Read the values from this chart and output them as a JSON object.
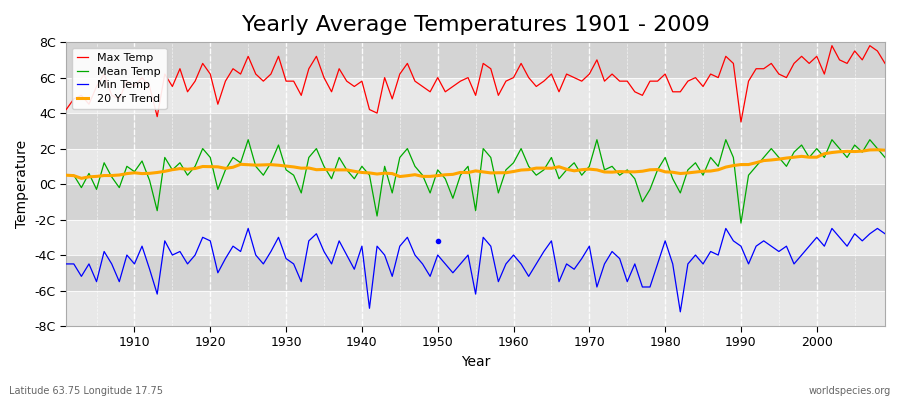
{
  "title": "Yearly Average Temperatures 1901 - 2009",
  "xlabel": "Year",
  "ylabel": "Temperature",
  "footnote_left": "Latitude 63.75 Longitude 17.75",
  "footnote_right": "worldspecies.org",
  "ylim": [
    -8,
    8
  ],
  "yticks": [
    -8,
    -6,
    -4,
    -2,
    0,
    2,
    4,
    6,
    8
  ],
  "ytick_labels": [
    "-8C",
    "-6C",
    "-4C",
    "-2C",
    "0C",
    "2C",
    "4C",
    "6C",
    "8C"
  ],
  "year_start": 1901,
  "year_end": 2009,
  "fig_bg_color": "#ffffff",
  "plot_bg_color": "#d8d8d8",
  "band_color_light": "#e8e8e8",
  "band_color_dark": "#d0d0d0",
  "max_temp_color": "#ff0000",
  "mean_temp_color": "#00aa00",
  "min_temp_color": "#0000ff",
  "trend_color": "#ffa500",
  "legend_labels": [
    "Max Temp",
    "Mean Temp",
    "Min Temp",
    "20 Yr Trend"
  ],
  "title_fontsize": 16,
  "axis_label_fontsize": 10,
  "tick_fontsize": 9,
  "max_temp": [
    4.2,
    4.8,
    5.0,
    4.5,
    5.5,
    6.2,
    5.0,
    4.8,
    5.8,
    5.5,
    6.0,
    5.5,
    3.8,
    6.2,
    5.5,
    6.5,
    5.2,
    5.8,
    6.8,
    6.2,
    4.5,
    5.8,
    6.5,
    6.2,
    7.2,
    6.2,
    5.8,
    6.2,
    7.2,
    5.8,
    5.8,
    5.0,
    6.5,
    7.2,
    6.0,
    5.2,
    6.5,
    5.8,
    5.5,
    5.8,
    4.2,
    4.0,
    6.0,
    4.8,
    6.2,
    6.8,
    5.8,
    5.5,
    5.2,
    6.0,
    5.2,
    5.5,
    5.8,
    6.0,
    5.0,
    6.8,
    6.5,
    5.0,
    5.8,
    6.0,
    6.8,
    6.0,
    5.5,
    5.8,
    6.2,
    5.2,
    6.2,
    6.0,
    5.8,
    6.2,
    7.0,
    5.8,
    6.2,
    5.8,
    5.8,
    5.2,
    5.0,
    5.8,
    5.8,
    6.2,
    5.2,
    5.2,
    5.8,
    6.0,
    5.5,
    6.2,
    6.0,
    7.2,
    6.8,
    3.5,
    5.8,
    6.5,
    6.5,
    6.8,
    6.2,
    6.0,
    6.8,
    7.2,
    6.8,
    7.2,
    6.2,
    7.8,
    7.0,
    6.8,
    7.5,
    7.0,
    7.8,
    7.5,
    6.8
  ],
  "mean_temp": [
    0.5,
    0.5,
    -0.2,
    0.6,
    -0.3,
    1.2,
    0.4,
    -0.2,
    1.0,
    0.7,
    1.3,
    0.2,
    -1.5,
    1.5,
    0.8,
    1.2,
    0.5,
    1.0,
    2.0,
    1.5,
    -0.3,
    0.8,
    1.5,
    1.2,
    2.5,
    1.0,
    0.5,
    1.2,
    2.2,
    0.8,
    0.5,
    -0.5,
    1.5,
    2.0,
    1.0,
    0.3,
    1.5,
    0.8,
    0.3,
    1.0,
    0.5,
    -1.8,
    1.0,
    -0.5,
    1.5,
    2.0,
    1.0,
    0.5,
    -0.5,
    0.8,
    0.3,
    -0.8,
    0.5,
    1.0,
    -1.5,
    2.0,
    1.5,
    -0.5,
    0.8,
    1.2,
    2.0,
    1.0,
    0.5,
    0.8,
    1.5,
    0.3,
    0.8,
    1.2,
    0.5,
    1.0,
    2.5,
    0.8,
    1.0,
    0.5,
    0.8,
    0.3,
    -1.0,
    -0.3,
    0.8,
    1.5,
    0.3,
    -0.5,
    0.8,
    1.2,
    0.5,
    1.5,
    1.0,
    2.5,
    1.5,
    -2.2,
    0.5,
    1.0,
    1.5,
    2.0,
    1.5,
    1.0,
    1.8,
    2.2,
    1.5,
    2.0,
    1.5,
    2.5,
    2.0,
    1.5,
    2.2,
    1.8,
    2.5,
    2.0,
    1.5
  ],
  "min_temp": [
    -4.5,
    -4.5,
    -5.2,
    -4.5,
    -5.5,
    -3.8,
    -4.5,
    -5.5,
    -4.0,
    -4.5,
    -3.5,
    -4.8,
    -6.2,
    -3.2,
    -4.0,
    -3.8,
    -4.5,
    -4.0,
    -3.0,
    -3.2,
    -5.0,
    -4.2,
    -3.5,
    -3.8,
    -2.5,
    -4.0,
    -4.5,
    -3.8,
    -3.0,
    -4.2,
    -4.5,
    -5.5,
    -3.2,
    -2.8,
    -3.8,
    -4.5,
    -3.2,
    -4.0,
    -4.8,
    -3.5,
    -7.0,
    -3.5,
    -4.0,
    -5.2,
    -3.5,
    -3.0,
    -4.0,
    -4.5,
    -5.2,
    -4.0,
    -4.5,
    -5.0,
    -4.5,
    -4.0,
    -6.2,
    -3.0,
    -3.5,
    -5.5,
    -4.5,
    -4.0,
    -4.5,
    -5.2,
    -4.5,
    -3.8,
    -3.2,
    -5.5,
    -4.5,
    -4.8,
    -4.2,
    -3.5,
    -5.8,
    -4.5,
    -3.8,
    -4.2,
    -5.5,
    -4.5,
    -5.8,
    -5.8,
    -4.5,
    -3.2,
    -4.5,
    -7.2,
    -4.5,
    -4.0,
    -4.5,
    -3.8,
    -4.0,
    -2.5,
    -3.2,
    -3.5,
    -4.5,
    -3.5,
    -3.2,
    -3.5,
    -3.8,
    -3.5,
    -4.5,
    -4.0,
    -3.5,
    -3.0,
    -3.5,
    -2.5,
    -3.0,
    -3.5,
    -2.8,
    -3.2,
    -2.8,
    -2.5,
    -2.8
  ],
  "dot_year": 1950,
  "dot_value": -3.2
}
